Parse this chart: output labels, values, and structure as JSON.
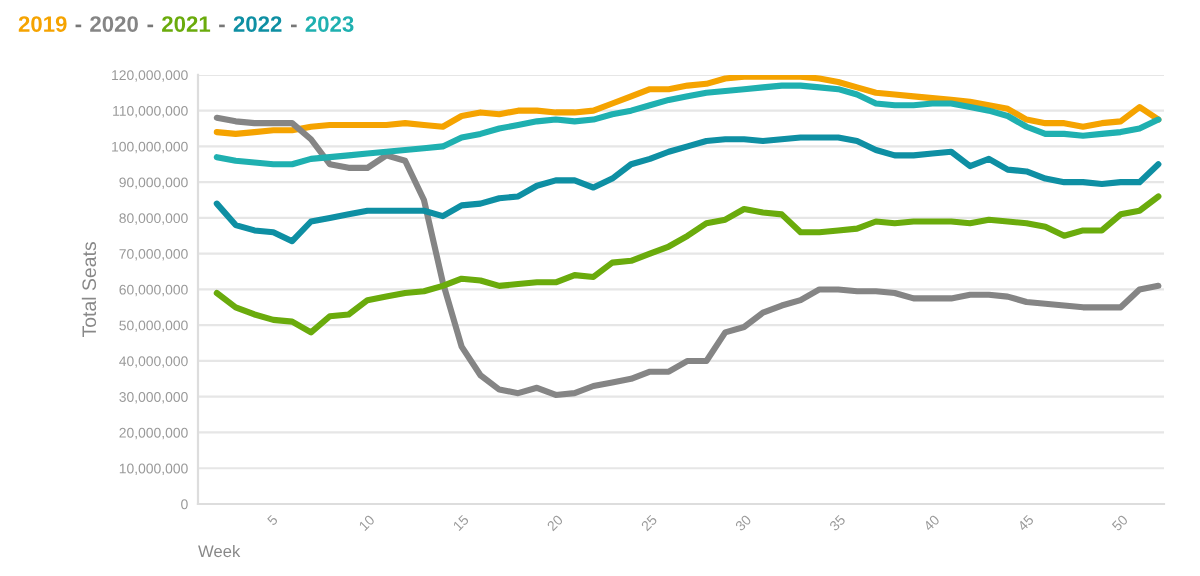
{
  "chart_data": {
    "type": "line",
    "xlabel": "Week",
    "ylabel": "Total Seats",
    "x": [
      2,
      3,
      4,
      5,
      6,
      7,
      8,
      9,
      10,
      11,
      12,
      13,
      14,
      15,
      16,
      17,
      18,
      19,
      20,
      21,
      22,
      23,
      24,
      25,
      26,
      27,
      28,
      29,
      30,
      31,
      32,
      33,
      34,
      35,
      36,
      37,
      38,
      39,
      40,
      41,
      42,
      43,
      44,
      45,
      46,
      47,
      48,
      49,
      50,
      51,
      52
    ],
    "series": [
      {
        "name": "2019",
        "color": "#f5a300",
        "values": [
          104000000,
          103500000,
          104000000,
          104500000,
          104500000,
          105500000,
          106000000,
          106000000,
          106000000,
          106000000,
          106500000,
          106000000,
          105500000,
          108500000,
          109500000,
          109000000,
          110000000,
          110000000,
          109500000,
          109500000,
          110000000,
          112000000,
          114000000,
          116000000,
          116000000,
          117000000,
          117500000,
          119000000,
          119500000,
          119500000,
          119500000,
          119500000,
          119000000,
          118000000,
          116500000,
          115000000,
          114500000,
          114000000,
          113500000,
          113000000,
          112500000,
          111500000,
          110500000,
          107500000,
          106500000,
          106500000,
          105500000,
          106500000,
          107000000,
          111000000,
          107500000
        ]
      },
      {
        "name": "2020",
        "color": "#858585",
        "values": [
          108000000,
          107000000,
          106500000,
          106500000,
          106500000,
          102000000,
          95000000,
          94000000,
          94000000,
          97500000,
          96000000,
          85000000,
          62000000,
          44000000,
          36000000,
          32000000,
          31000000,
          32500000,
          30500000,
          31000000,
          33000000,
          34000000,
          35000000,
          37000000,
          37000000,
          40000000,
          40000000,
          48000000,
          49500000,
          53500000,
          55500000,
          57000000,
          60000000,
          60000000,
          59500000,
          59500000,
          59000000,
          57500000,
          57500000,
          57500000,
          58500000,
          58500000,
          58000000,
          56500000,
          56000000,
          55500000,
          55000000,
          55000000,
          55000000,
          60000000,
          61000000
        ]
      },
      {
        "name": "2021",
        "color": "#6aab0c",
        "values": [
          59000000,
          55000000,
          53000000,
          51500000,
          51000000,
          48000000,
          52500000,
          53000000,
          57000000,
          58000000,
          59000000,
          59500000,
          61000000,
          63000000,
          62500000,
          61000000,
          61500000,
          62000000,
          62000000,
          64000000,
          63500000,
          67500000,
          68000000,
          70000000,
          72000000,
          75000000,
          78500000,
          79500000,
          82500000,
          81500000,
          81000000,
          76000000,
          76000000,
          76500000,
          77000000,
          79000000,
          78500000,
          79000000,
          79000000,
          79000000,
          78500000,
          79500000,
          79000000,
          78500000,
          77500000,
          75000000,
          76500000,
          76500000,
          81000000,
          82000000,
          86000000
        ]
      },
      {
        "name": "2022",
        "color": "#0e8fa3",
        "values": [
          84000000,
          78000000,
          76500000,
          76000000,
          73500000,
          79000000,
          80000000,
          81000000,
          82000000,
          82000000,
          82000000,
          82000000,
          80500000,
          83500000,
          84000000,
          85500000,
          86000000,
          89000000,
          90500000,
          90500000,
          88500000,
          91000000,
          95000000,
          96500000,
          98500000,
          100000000,
          101500000,
          102000000,
          102000000,
          101500000,
          102000000,
          102500000,
          102500000,
          102500000,
          101500000,
          99000000,
          97500000,
          97500000,
          98000000,
          98500000,
          94500000,
          96500000,
          93500000,
          93000000,
          91000000,
          90000000,
          90000000,
          89500000,
          90000000,
          90000000,
          95000000
        ]
      },
      {
        "name": "2023",
        "color": "#1fb0b0",
        "values": [
          97000000,
          96000000,
          95500000,
          95000000,
          95000000,
          96500000,
          97000000,
          97500000,
          98000000,
          98500000,
          99000000,
          99500000,
          100000000,
          102500000,
          103500000,
          105000000,
          106000000,
          107000000,
          107500000,
          107000000,
          107500000,
          109000000,
          110000000,
          111500000,
          113000000,
          114000000,
          115000000,
          115500000,
          116000000,
          116500000,
          117000000,
          117000000,
          116500000,
          116000000,
          114500000,
          112000000,
          111500000,
          111500000,
          112000000,
          112000000,
          111000000,
          110000000,
          108500000,
          105500000,
          103500000,
          103500000,
          103000000,
          103500000,
          104000000,
          105000000,
          107500000
        ]
      }
    ],
    "xlim": [
      1,
      52.3
    ],
    "xticks": [
      5,
      10,
      15,
      20,
      25,
      30,
      35,
      40,
      45,
      50
    ],
    "ylim": [
      0,
      120000000
    ],
    "yticks": [
      {
        "value": 0,
        "label": "0"
      },
      {
        "value": 10000000,
        "label": "10,000,000"
      },
      {
        "value": 20000000,
        "label": "20,000,000"
      },
      {
        "value": 30000000,
        "label": "30,000,000"
      },
      {
        "value": 40000000,
        "label": "40,000,000"
      },
      {
        "value": 50000000,
        "label": "50,000,000"
      },
      {
        "value": 60000000,
        "label": "60,000,000"
      },
      {
        "value": 70000000,
        "label": "70,000,000"
      },
      {
        "value": 80000000,
        "label": "80,000,000"
      },
      {
        "value": 90000000,
        "label": "90,000,000"
      },
      {
        "value": 100000000,
        "label": "100,000,000"
      },
      {
        "value": 110000000,
        "label": "110,000,000"
      },
      {
        "value": 120000000,
        "label": "120,000,000"
      }
    ],
    "grid": "y",
    "legend": "top left",
    "legend_title": "-",
    "marker": "none",
    "line_style": "solid"
  }
}
